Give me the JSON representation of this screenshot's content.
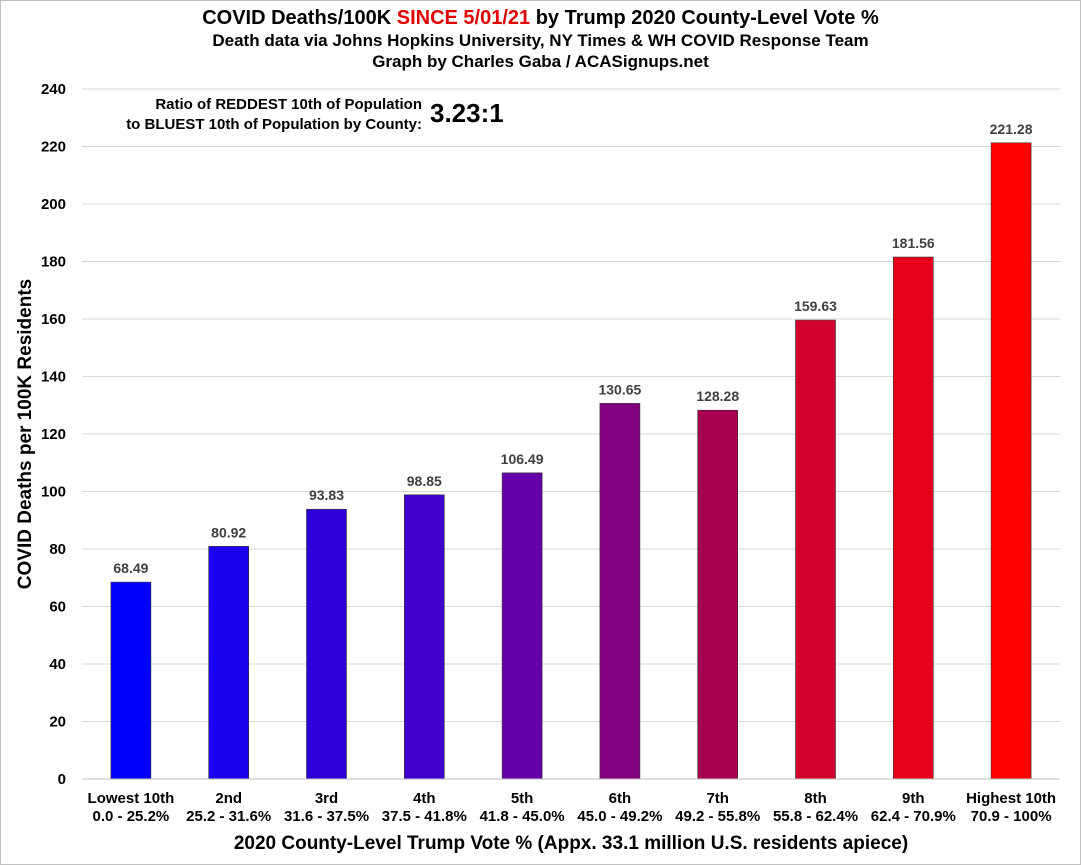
{
  "title": {
    "prefix": "COVID Deaths/100K ",
    "highlight": "SINCE 5/01/21",
    "suffix": " by Trump 2020 County-Level Vote %",
    "line2": "Death data via Johns Hopkins University, NY Times & WH COVID Response Team",
    "line3": "Graph by Charles Gaba / ACASignups.net"
  },
  "ratio": {
    "line1": "Ratio of REDDEST 10th of Population",
    "line2": "to BLUEST 10th of Population by County:",
    "value": "3.23:1"
  },
  "colors": {
    "highlight": "#e00000",
    "bars": [
      "#0000ff",
      "#1a00ee",
      "#2e00d8",
      "#3f00cc",
      "#6600a8",
      "#820080",
      "#a80050",
      "#d2002d",
      "#e6001a",
      "#ff0000"
    ]
  },
  "chart_data": {
    "type": "bar",
    "categories": [
      [
        "Lowest 10th",
        "0.0 - 25.2%"
      ],
      [
        "2nd",
        "25.2 - 31.6%"
      ],
      [
        "3rd",
        "31.6 - 37.5%"
      ],
      [
        "4th",
        "37.5 - 41.8%"
      ],
      [
        "5th",
        "41.8 - 45.0%"
      ],
      [
        "6th",
        "45.0 - 49.2%"
      ],
      [
        "7th",
        "49.2 - 55.8%"
      ],
      [
        "8th",
        "55.8 - 62.4%"
      ],
      [
        "9th",
        "62.4 - 70.9%"
      ],
      [
        "Highest 10th",
        "70.9 - 100%"
      ]
    ],
    "values": [
      68.49,
      80.92,
      93.83,
      98.85,
      106.49,
      130.65,
      128.28,
      159.63,
      181.56,
      221.28
    ],
    "value_labels": [
      "68.49",
      "80.92",
      "93.83",
      "98.85",
      "106.49",
      "130.65",
      "128.28",
      "159.63",
      "181.56",
      "221.28"
    ],
    "ylabel": "COVID Deaths per 100K Residents",
    "xlabel": "2020 County-Level Trump Vote % (Appx. 33.1 million U.S. residents apiece)",
    "ylim": [
      0,
      240
    ],
    "yticks": [
      0,
      20,
      40,
      60,
      80,
      100,
      120,
      140,
      160,
      180,
      200,
      220,
      240
    ],
    "grid": true
  }
}
